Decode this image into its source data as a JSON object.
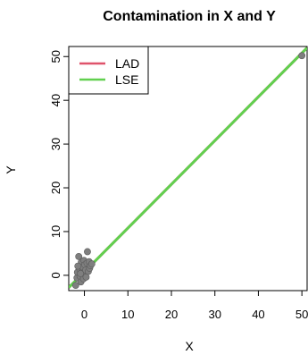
{
  "chart_data": {
    "type": "scatter",
    "title": "Contamination in X and Y",
    "xlabel": "X",
    "ylabel": "Y",
    "xlim": [
      -3.6,
      51.2
    ],
    "ylim": [
      -3.5,
      52.3
    ],
    "xticks": [
      0,
      10,
      20,
      30,
      40,
      50
    ],
    "yticks": [
      0,
      10,
      20,
      30,
      40,
      50
    ],
    "grid": false,
    "legend_position": "top-left",
    "point_color": "#7f7f7f",
    "points": [
      {
        "x": -2.0,
        "y": -2.3
      },
      {
        "x": -1.7,
        "y": -0.6
      },
      {
        "x": -1.6,
        "y": 0.7
      },
      {
        "x": -1.3,
        "y": 4.3
      },
      {
        "x": -1.1,
        "y": 1.5
      },
      {
        "x": -1.0,
        "y": -0.2
      },
      {
        "x": -0.8,
        "y": -1.5
      },
      {
        "x": -0.7,
        "y": 3.0
      },
      {
        "x": -0.5,
        "y": 0.8
      },
      {
        "x": -0.4,
        "y": 1.9
      },
      {
        "x": -0.2,
        "y": -0.8
      },
      {
        "x": -0.1,
        "y": 3.4
      },
      {
        "x": 0.0,
        "y": 0.3
      },
      {
        "x": 0.1,
        "y": 2.4
      },
      {
        "x": 0.3,
        "y": 1.2
      },
      {
        "x": 0.4,
        "y": -0.4
      },
      {
        "x": 0.6,
        "y": 2.8
      },
      {
        "x": 0.7,
        "y": 5.4
      },
      {
        "x": 0.9,
        "y": 0.9
      },
      {
        "x": 1.1,
        "y": 3.1
      },
      {
        "x": 1.2,
        "y": 1.6
      },
      {
        "x": 1.4,
        "y": 2.2
      },
      {
        "x": 1.7,
        "y": 2.6
      },
      {
        "x": -1.5,
        "y": 2.1
      },
      {
        "x": -0.9,
        "y": 0.4
      },
      {
        "x": 50.0,
        "y": 50.2
      }
    ],
    "series": [
      {
        "name": "LAD",
        "type": "line",
        "color": "#df536b",
        "intercept": 0.8,
        "slope": 1.0
      },
      {
        "name": "LSE",
        "type": "line",
        "color": "#61d04f",
        "intercept": 0.8,
        "slope": 1.0
      }
    ]
  }
}
